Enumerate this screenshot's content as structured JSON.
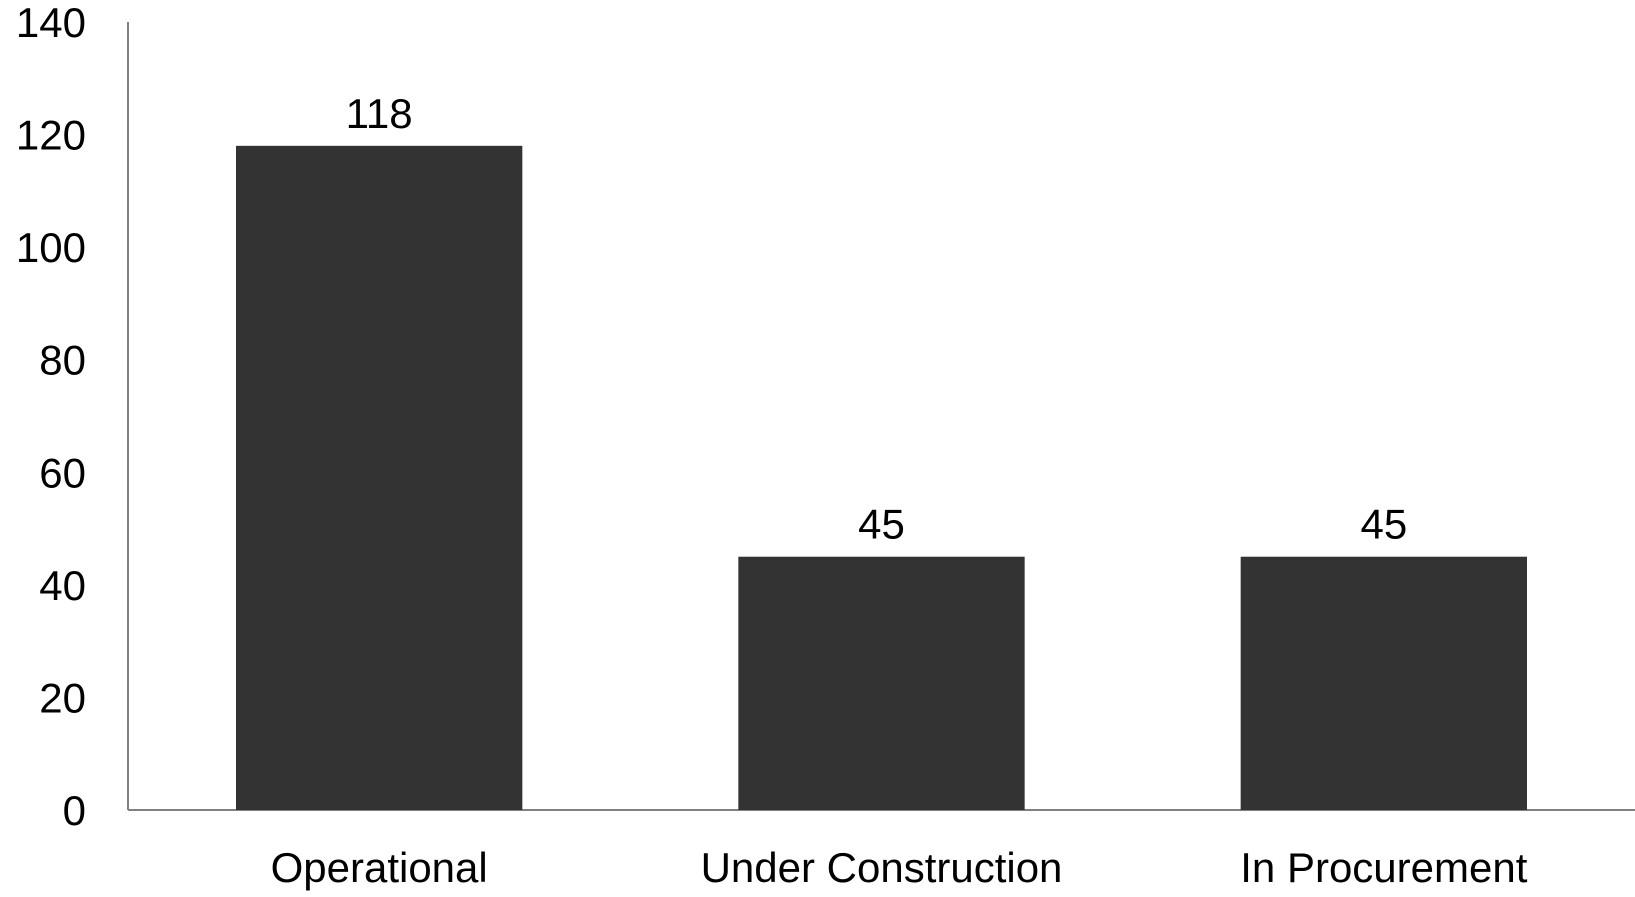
{
  "chart_data": {
    "type": "bar",
    "title": "",
    "xlabel": "",
    "ylabel": "",
    "categories": [
      "Operational",
      "Under Construction",
      "In Procurement"
    ],
    "values": [
      118,
      45,
      45
    ],
    "data_labels": [
      "118",
      "45",
      "45"
    ],
    "ylim": [
      0,
      140
    ],
    "yticks": [
      0,
      20,
      40,
      60,
      80,
      100,
      120,
      140
    ],
    "ytick_labels": [
      "0",
      "20",
      "40",
      "60",
      "80",
      "100",
      "120",
      "140"
    ],
    "grid": false,
    "legend": "none",
    "bar_color": "#333333"
  }
}
